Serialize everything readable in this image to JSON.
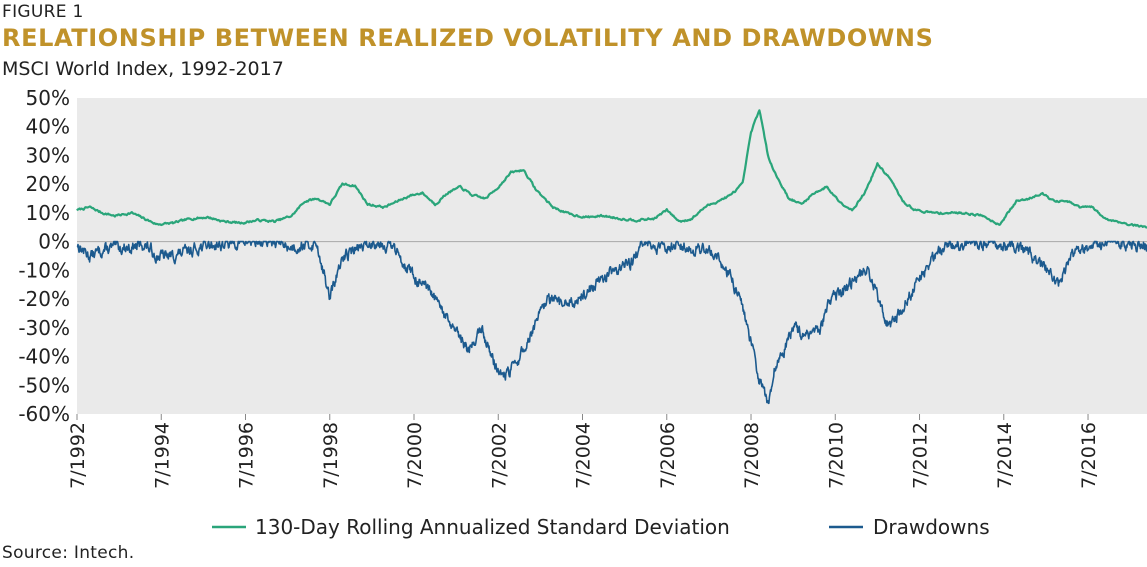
{
  "figure_label": "FIGURE 1",
  "title": "RELATIONSHIP BETWEEN REALIZED VOLATILITY AND DRAWDOWNS",
  "subtitle": "MSCI World Index, 1992-2017",
  "source": "Source: Intech.",
  "colors": {
    "title": "#C0922A",
    "volatility": "#2AA57A",
    "drawdowns": "#1C5A8E",
    "plot_bg": "#EAEAEA",
    "zero_line": "#A8A8A8"
  },
  "chart_data": {
    "type": "line",
    "title": "RELATIONSHIP BETWEEN REALIZED VOLATILITY AND DRAWDOWNS",
    "subtitle": "MSCI World Index, 1992-2017",
    "xlabel": "",
    "ylabel": "",
    "xlim": [
      1992.5,
      2017.9
    ],
    "ylim": [
      -60,
      50
    ],
    "grid": false,
    "legend": "bottom",
    "yticks": [
      50,
      40,
      30,
      20,
      10,
      0,
      -10,
      -20,
      -30,
      -40,
      -50,
      -60
    ],
    "ytick_labels": [
      "50%",
      "40%",
      "30%",
      "20%",
      "10%",
      "0%",
      "-10%",
      "-20%",
      "-30%",
      "-40%",
      "-50%",
      "-60%"
    ],
    "xticks": [
      1992.5,
      1994.5,
      1996.5,
      1998.5,
      2000.5,
      2002.5,
      2004.5,
      2006.5,
      2008.5,
      2010.5,
      2012.5,
      2014.5,
      2016.5
    ],
    "xtick_labels": [
      "7/1992",
      "7/1994",
      "7/1996",
      "7/1998",
      "7/2000",
      "7/2002",
      "7/2004",
      "7/2006",
      "7/2008",
      "7/2010",
      "7/2012",
      "7/2014",
      "7/2016"
    ],
    "series": [
      {
        "name": "130-Day Rolling Annualized Standard Deviation",
        "x": [
          1992.5,
          1992.8,
          1993.1,
          1993.4,
          1993.8,
          1994.1,
          1994.4,
          1994.8,
          1995.2,
          1995.6,
          1996.0,
          1996.4,
          1996.8,
          1997.2,
          1997.6,
          1997.9,
          1998.2,
          1998.5,
          1998.8,
          1999.1,
          1999.4,
          1999.8,
          2000.1,
          2000.4,
          2000.7,
          2001.0,
          2001.3,
          2001.6,
          2001.9,
          2002.2,
          2002.5,
          2002.8,
          2003.1,
          2003.4,
          2003.8,
          2004.2,
          2004.6,
          2005.0,
          2005.4,
          2005.8,
          2006.2,
          2006.5,
          2006.8,
          2007.1,
          2007.4,
          2007.7,
          2008.0,
          2008.3,
          2008.5,
          2008.7,
          2008.9,
          2009.1,
          2009.4,
          2009.7,
          2010.0,
          2010.3,
          2010.6,
          2010.9,
          2011.2,
          2011.5,
          2011.8,
          2012.1,
          2012.4,
          2012.8,
          2013.2,
          2013.6,
          2014.0,
          2014.4,
          2014.8,
          2015.1,
          2015.4,
          2015.7,
          2016.0,
          2016.3,
          2016.6,
          2016.9,
          2017.2,
          2017.5,
          2017.9
        ],
        "y": [
          11,
          12,
          10,
          9,
          10,
          8,
          6,
          6.5,
          8,
          8.5,
          7,
          6.5,
          7.5,
          7,
          9,
          14,
          15,
          13,
          20,
          19.5,
          13,
          12,
          14,
          16,
          17,
          13,
          17,
          19,
          16,
          15,
          19,
          24,
          25,
          18,
          12,
          9.5,
          8.5,
          9,
          8,
          7.5,
          8,
          11,
          7,
          8,
          12,
          14,
          16,
          20,
          38,
          46,
          30,
          23,
          15,
          13,
          17,
          19,
          14,
          11,
          17,
          27,
          22,
          14,
          11,
          10,
          10,
          10,
          9,
          6,
          14,
          15,
          17,
          14,
          14,
          12,
          12,
          8,
          7,
          6,
          5
        ]
      },
      {
        "name": "Drawdowns",
        "x": [
          1992.5,
          1992.8,
          1993.1,
          1993.4,
          1993.8,
          1994.1,
          1994.4,
          1994.8,
          1995.2,
          1995.6,
          1996.0,
          1996.4,
          1996.8,
          1997.2,
          1997.6,
          1997.9,
          1998.2,
          1998.5,
          1998.7,
          1998.9,
          1999.2,
          1999.6,
          2000.0,
          2000.3,
          2000.6,
          2000.9,
          2001.2,
          2001.5,
          2001.8,
          2002.1,
          2002.4,
          2002.6,
          2002.8,
          2003.1,
          2003.4,
          2003.7,
          2004.0,
          2004.4,
          2004.8,
          2005.2,
          2005.6,
          2006.0,
          2006.3,
          2006.6,
          2006.8,
          2007.1,
          2007.4,
          2007.7,
          2008.0,
          2008.3,
          2008.5,
          2008.7,
          2008.9,
          2009.05,
          2009.2,
          2009.5,
          2009.8,
          2010.1,
          2010.4,
          2010.7,
          2011.0,
          2011.3,
          2011.6,
          2011.8,
          2012.1,
          2012.4,
          2012.7,
          2013.0,
          2013.4,
          2013.8,
          2014.2,
          2014.6,
          2015.0,
          2015.3,
          2015.6,
          2015.8,
          2016.1,
          2016.4,
          2016.7,
          2017.0,
          2017.3,
          2017.6,
          2017.9
        ],
        "y": [
          -1,
          -5,
          -3,
          -2,
          -2,
          -1,
          -5,
          -5,
          -3,
          -1,
          -1,
          0,
          0,
          0,
          -2,
          -1,
          -1,
          -20,
          -10,
          -4,
          -2,
          0,
          -2,
          -8,
          -14,
          -18,
          -25,
          -32,
          -38,
          -30,
          -42,
          -47,
          -45,
          -38,
          -28,
          -20,
          -22,
          -20,
          -15,
          -10,
          -8,
          0,
          -3,
          -1,
          0,
          -3,
          -2,
          -5,
          -12,
          -22,
          -35,
          -48,
          -56,
          -45,
          -40,
          -30,
          -33,
          -32,
          -20,
          -18,
          -12,
          -10,
          -24,
          -30,
          -23,
          -15,
          -8,
          -2,
          -1,
          0,
          -1,
          -2,
          -3,
          -7,
          -10,
          -15,
          -5,
          -3,
          -1,
          0,
          0,
          -1,
          -1
        ]
      }
    ]
  },
  "legend": {
    "items": [
      {
        "label": "130-Day Rolling Annualized Standard Deviation"
      },
      {
        "label": "Drawdowns"
      }
    ]
  }
}
